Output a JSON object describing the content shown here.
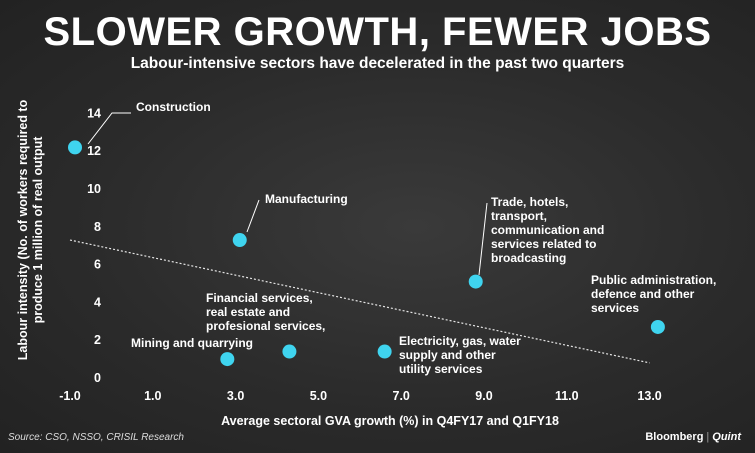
{
  "header": {
    "title": "SLOWER GROWTH, FEWER JOBS",
    "subtitle": "Labour-intensive sectors have decelerated in the past two quarters"
  },
  "footer": {
    "source": "Source: CSO, NSSO, CRISIL Research",
    "brand": "Bloomberg",
    "brand_separator": "|",
    "brand_partner": "Quint"
  },
  "colors": {
    "point": "#3fd4ef",
    "background": "#2b2b2b",
    "text": "#ffffff",
    "trendline": "#e6e6e6"
  },
  "chart_data": {
    "type": "scatter",
    "xlabel": "Average sectoral GVA growth (%) in Q4FY17 and Q1FY18",
    "ylabel": "Labour intensity (No. of workers required to produce 1 million of real output",
    "xlim": [
      -1.0,
      14.5
    ],
    "ylim": [
      0,
      14.5
    ],
    "xticks": [
      "-1.0",
      "1.0",
      "3.0",
      "5.0",
      "7.0",
      "9.0",
      "11.0",
      "13.0"
    ],
    "yticks": [
      "0",
      "2",
      "4",
      "6",
      "8",
      "10",
      "12",
      "14"
    ],
    "grid": false,
    "points": [
      {
        "label": "Construction",
        "lines": [
          "Construction"
        ],
        "x": -1.0,
        "y": 12.2
      },
      {
        "label": "Manufacturing",
        "lines": [
          "Manufacturing"
        ],
        "x": 3.1,
        "y": 7.3
      },
      {
        "label": "Trade, hotels, transport, communication and services related to broadcasting",
        "lines": [
          "Trade, hotels,",
          "transport,",
          "communication and",
          "services related to",
          "broadcasting"
        ],
        "x": 8.8,
        "y": 5.1
      },
      {
        "label": "Public administration, defence and other services",
        "lines": [
          "Public administration,",
          "defence and other",
          "services"
        ],
        "x": 13.2,
        "y": 2.7
      },
      {
        "label": "Financial services, real estate and profesional services,",
        "lines": [
          "Financial services,",
          "real estate and",
          "profesional services,"
        ],
        "x": 4.3,
        "y": 1.4
      },
      {
        "label": "Mining and quarrying",
        "lines": [
          "Mining and quarrying"
        ],
        "x": 2.8,
        "y": 1.0
      },
      {
        "label": "Electricity, gas, water supply and other utility services",
        "lines": [
          "Electricity, gas, water",
          "supply and other",
          "utility services"
        ],
        "x": 6.6,
        "y": 1.4
      }
    ],
    "trendline": {
      "x": [
        -1.0,
        13.0
      ],
      "y": [
        7.3,
        0.8
      ]
    }
  }
}
